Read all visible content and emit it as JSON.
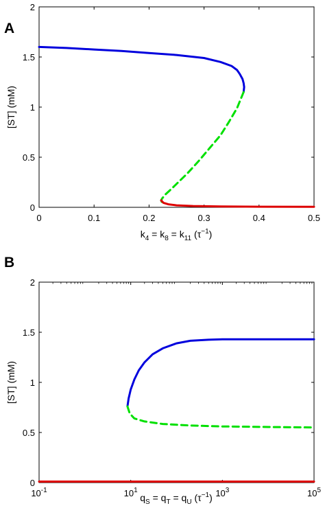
{
  "chart_data": [
    {
      "panel": "A",
      "type": "line",
      "xlabel": {
        "base": "k",
        "sub4": "4",
        "eq1": " = k",
        "sub8": "8",
        "eq2": " = k",
        "sub11": "11",
        "paren": " (τ",
        "sup": "−1",
        "close": ")"
      },
      "ylabel": "[ST] (mM)",
      "xscale": "linear",
      "xlim": [
        0,
        0.5
      ],
      "ylim": [
        0,
        2
      ],
      "xticks": [
        0,
        0.1,
        0.2,
        0.3,
        0.4,
        0.5
      ],
      "xtick_labels": [
        "0",
        "0.1",
        "0.2",
        "0.3",
        "0.4",
        "0.5"
      ],
      "yticks": [
        0,
        0.5,
        1,
        1.5,
        2
      ],
      "ytick_labels": [
        "0",
        "0.5",
        "1",
        "1.5",
        "2"
      ],
      "grid": false,
      "series": [
        {
          "style": "solid",
          "color": "#0000dd",
          "x": [
            0,
            0.05,
            0.1,
            0.15,
            0.2,
            0.25,
            0.3,
            0.33,
            0.35,
            0.36,
            0.365,
            0.37,
            0.372,
            0.373,
            0.372
          ],
          "y": [
            1.6,
            1.59,
            1.575,
            1.56,
            1.54,
            1.52,
            1.49,
            1.45,
            1.41,
            1.37,
            1.33,
            1.28,
            1.24,
            1.2,
            1.15
          ]
        },
        {
          "style": "dashed",
          "color": "#00e000",
          "x": [
            0.372,
            0.36,
            0.345,
            0.33,
            0.31,
            0.29,
            0.27,
            0.255,
            0.24,
            0.23,
            0.224,
            0.222,
            0.223,
            0.228
          ],
          "y": [
            1.15,
            0.99,
            0.85,
            0.72,
            0.59,
            0.46,
            0.34,
            0.26,
            0.18,
            0.13,
            0.09,
            0.07,
            0.055,
            0.045
          ]
        },
        {
          "style": "solid",
          "color": "#dd0000",
          "x": [
            0.222,
            0.226,
            0.235,
            0.25,
            0.28,
            0.33,
            0.4,
            0.5
          ],
          "y": [
            0.07,
            0.045,
            0.03,
            0.02,
            0.013,
            0.008,
            0.006,
            0.005
          ]
        }
      ]
    },
    {
      "panel": "B",
      "type": "line",
      "xlabel": {
        "base": "q",
        "subS": "S",
        "eq1": " = q",
        "subT": "T",
        "eq2": " = q",
        "subU": "U",
        "paren": " (τ",
        "sup": "−1",
        "close": ")"
      },
      "ylabel": "[ST] (mM)",
      "xscale": "log",
      "xlim": [
        0.1,
        100000
      ],
      "ylim": [
        0,
        2
      ],
      "xticks": [
        0.1,
        10,
        1000,
        100000
      ],
      "xtick_labels": [
        {
          "base": "10",
          "exp": "-1"
        },
        {
          "base": "10",
          "exp": "1"
        },
        {
          "base": "10",
          "exp": "3"
        },
        {
          "base": "10",
          "exp": "5"
        }
      ],
      "yticks": [
        0,
        0.5,
        1,
        1.5,
        2
      ],
      "ytick_labels": [
        "0",
        "0.5",
        "1",
        "1.5",
        "2"
      ],
      "grid": false,
      "series": [
        {
          "style": "solid",
          "color": "#0000dd",
          "x": [
            8.5,
            9,
            10,
            12,
            15,
            20,
            30,
            50,
            100,
            200,
            500,
            1000,
            3000,
            100000
          ],
          "y": [
            0.76,
            0.84,
            0.93,
            1.03,
            1.12,
            1.2,
            1.28,
            1.34,
            1.39,
            1.415,
            1.425,
            1.43,
            1.43,
            1.43
          ]
        },
        {
          "style": "dashed",
          "color": "#00e000",
          "x": [
            8.5,
            9.5,
            12,
            20,
            50,
            200,
            1000,
            10000,
            100000
          ],
          "y": [
            0.76,
            0.69,
            0.64,
            0.61,
            0.585,
            0.57,
            0.56,
            0.555,
            0.55
          ]
        },
        {
          "style": "solid",
          "color": "#dd0000",
          "x": [
            0.1,
            100000
          ],
          "y": [
            0.01,
            0.01
          ]
        }
      ]
    }
  ]
}
